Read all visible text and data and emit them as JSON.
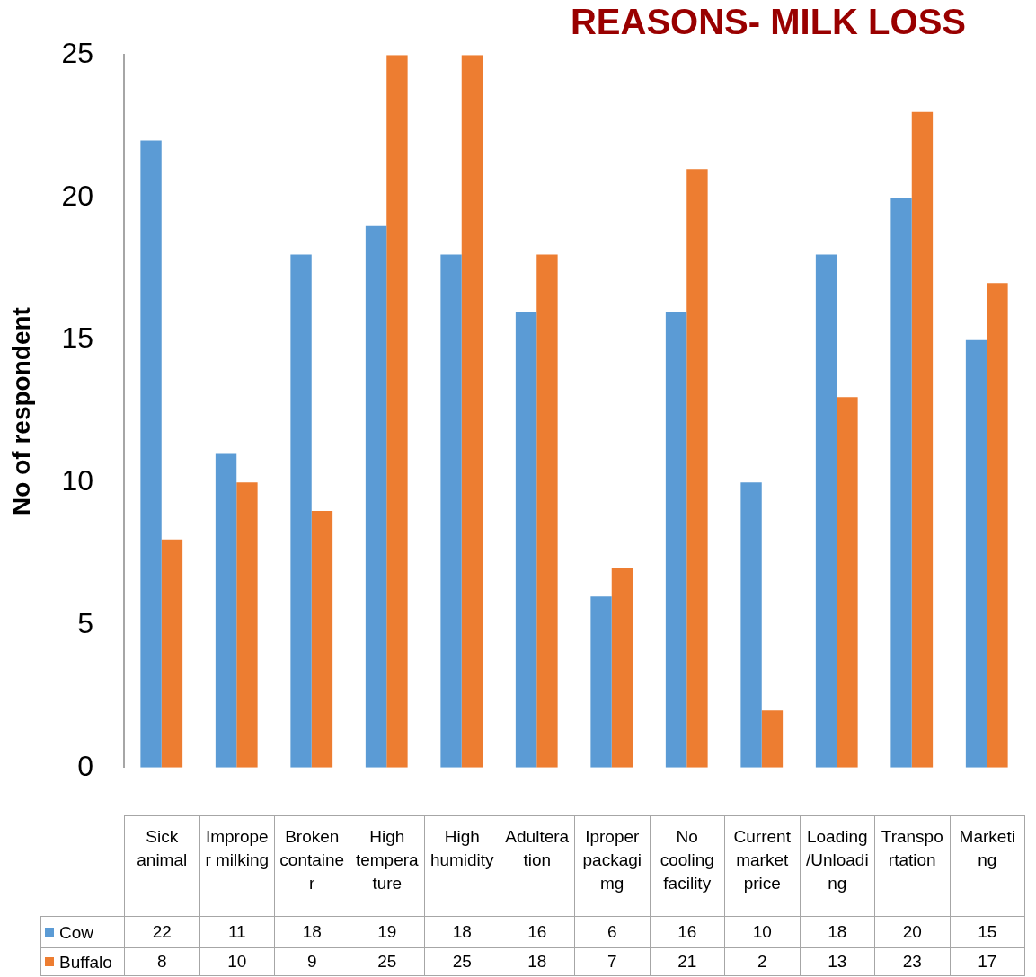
{
  "chart_data": {
    "type": "bar",
    "title": "REASONS- MILK LOSS",
    "ylabel": "No of respondent",
    "categories": [
      "Sick animal",
      "Improper milking",
      "Broken container",
      "High temperature",
      "High humidity",
      "Adulteration",
      "Iproper packagimg",
      "No cooling facility",
      "Current market price",
      "Loading/Unloading",
      "Transportation",
      "Marketing"
    ],
    "series": [
      {
        "name": "Cow",
        "color": "#5b9bd5",
        "values": [
          22,
          11,
          18,
          19,
          18,
          16,
          6,
          16,
          10,
          18,
          20,
          15
        ]
      },
      {
        "name": "Buffalo",
        "color": "#ed7d31",
        "values": [
          8,
          10,
          9,
          25,
          25,
          18,
          7,
          21,
          2,
          13,
          23,
          17
        ]
      }
    ],
    "ylim": [
      0,
      25
    ],
    "yticks": [
      0,
      5,
      10,
      15,
      20,
      25
    ],
    "grid": false,
    "legend": "bottom",
    "data_labels": true
  }
}
